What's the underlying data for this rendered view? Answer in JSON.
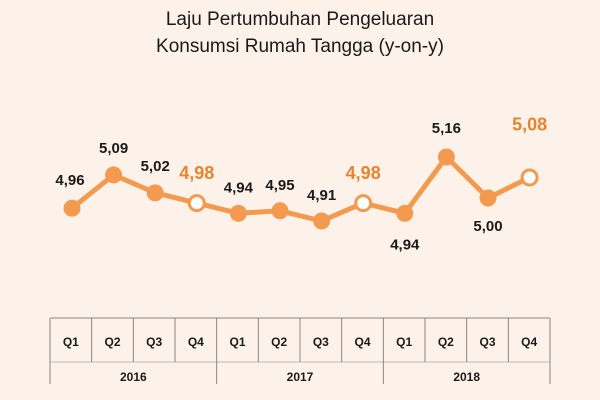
{
  "title_line1": "Laju Pertumbuhan Pengeluaran",
  "title_line2": "Konsumsi Rumah Tangga (y-on-y)",
  "colors": {
    "line": "#f39a4e",
    "accent_label": "#e8832e",
    "background": "#fdf2ea",
    "text": "#1a1a1a"
  },
  "chart_data": {
    "type": "line",
    "title": "Laju Pertumbuhan Pengeluaran Konsumsi Rumah Tangga (y-on-y)",
    "categories": [
      "Q1",
      "Q2",
      "Q3",
      "Q4",
      "Q1",
      "Q2",
      "Q3",
      "Q4",
      "Q1",
      "Q2",
      "Q3",
      "Q4"
    ],
    "years": [
      "2016",
      "2017",
      "2018"
    ],
    "series": [
      {
        "values": [
          4.96,
          5.09,
          5.02,
          4.98,
          4.94,
          4.95,
          4.91,
          4.98,
          4.94,
          5.16,
          5.0,
          5.08
        ],
        "labels": [
          "4,96",
          "5,09",
          "5,02",
          "4,98",
          "4,94",
          "4,95",
          "4,91",
          "4,98",
          "4,94",
          "5,16",
          "5,00",
          "5,08"
        ],
        "hollow_markers": [
          false,
          false,
          false,
          true,
          false,
          false,
          false,
          true,
          false,
          false,
          false,
          true
        ]
      }
    ],
    "grid": false
  }
}
